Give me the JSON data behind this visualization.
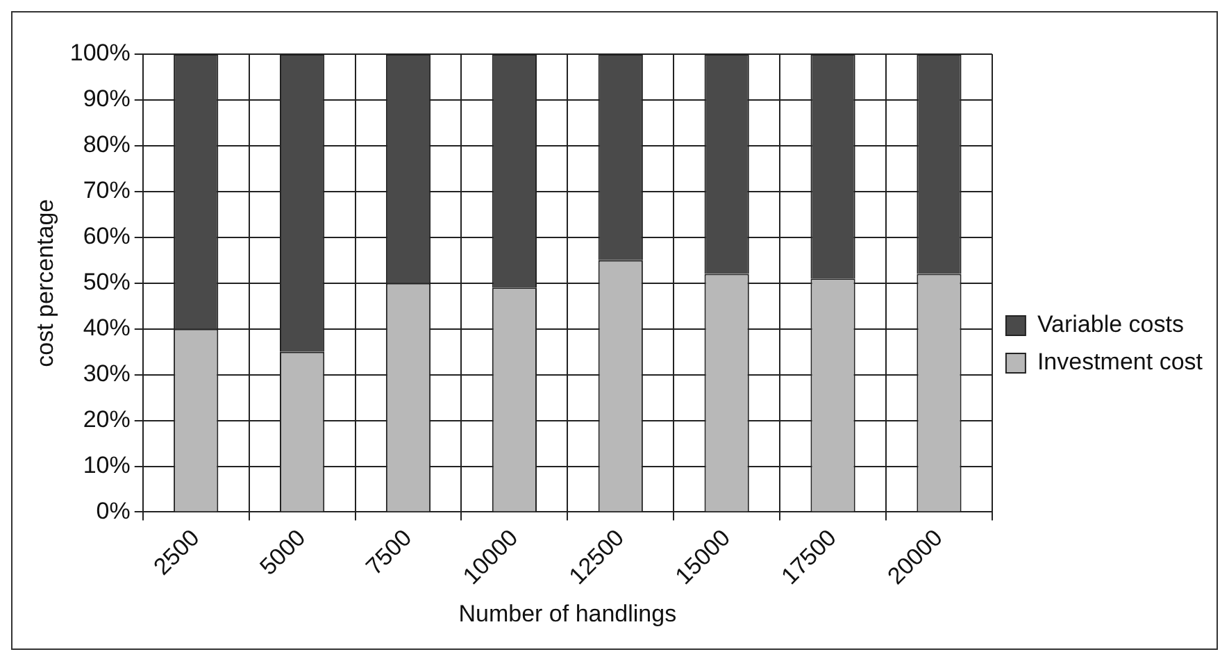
{
  "chart_data": {
    "type": "bar",
    "stacked": true,
    "xlabel": "Number of handlings",
    "ylabel": "cost percentage",
    "categories": [
      "2500",
      "5000",
      "7500",
      "10000",
      "12500",
      "15000",
      "17500",
      "20000"
    ],
    "series": [
      {
        "name": "Investment cost",
        "color": "#b8b8b8",
        "values": [
          40,
          35,
          50,
          49,
          55,
          52,
          51,
          52
        ]
      },
      {
        "name": "Variable costs",
        "color": "#4a4a4a",
        "values": [
          60,
          65,
          50,
          51,
          45,
          48,
          49,
          48
        ]
      }
    ],
    "ylim": [
      0,
      100
    ],
    "yticks": [
      {
        "value": 0,
        "label": "0%"
      },
      {
        "value": 10,
        "label": "10%"
      },
      {
        "value": 20,
        "label": "20%"
      },
      {
        "value": 30,
        "label": "30%"
      },
      {
        "value": 40,
        "label": "40%"
      },
      {
        "value": 50,
        "label": "50%"
      },
      {
        "value": 60,
        "label": "60%"
      },
      {
        "value": 70,
        "label": "70%"
      },
      {
        "value": 80,
        "label": "80%"
      },
      {
        "value": 90,
        "label": "90%"
      },
      {
        "value": 100,
        "label": "100%"
      }
    ],
    "grid": true,
    "legend": "right"
  }
}
